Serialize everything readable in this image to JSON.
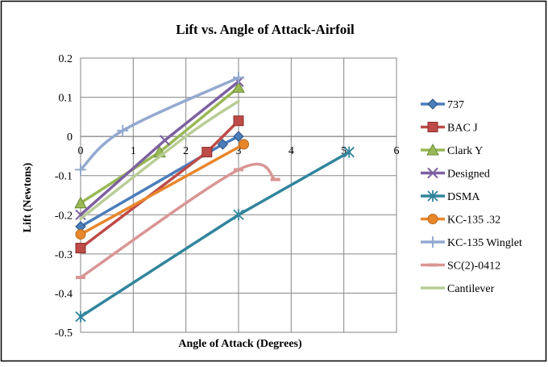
{
  "chart_data": {
    "type": "line",
    "title": "Lift vs. Angle of Attack-Airfoil",
    "xlabel": "Angle of Attack (Degrees)",
    "ylabel": "Lift (Newtons)",
    "xlim": [
      0,
      6
    ],
    "ylim": [
      -0.5,
      0.2
    ],
    "xticks": [
      "0",
      "1",
      "2",
      "3",
      "4",
      "5",
      "6"
    ],
    "yticks": [
      "0.2",
      "0.1",
      "0",
      "-0.1",
      "-0.2",
      "-0.3",
      "-0.4",
      "-0.5"
    ],
    "grid": true,
    "legend_position": "right",
    "series": [
      {
        "name": "737",
        "color": "#4a7ebb",
        "marker": "diamond",
        "smooth": false,
        "x": [
          0,
          2.7,
          3.0
        ],
        "y": [
          -0.23,
          -0.02,
          0.0
        ]
      },
      {
        "name": "BAC J",
        "color": "#be4b48",
        "marker": "square",
        "smooth": false,
        "x": [
          0,
          2.4,
          3.0
        ],
        "y": [
          -0.285,
          -0.04,
          0.04
        ]
      },
      {
        "name": "Clark Y",
        "color": "#98b954",
        "marker": "triangle",
        "smooth": false,
        "x": [
          0,
          1.5,
          3.0
        ],
        "y": [
          -0.17,
          -0.04,
          0.125
        ]
      },
      {
        "name": "Designed",
        "color": "#7d60a0",
        "marker": "x",
        "smooth": false,
        "x": [
          0,
          1.6,
          3.0
        ],
        "y": [
          -0.2,
          -0.01,
          0.14
        ]
      },
      {
        "name": "DSMA",
        "color": "#31859c",
        "marker": "star",
        "smooth": false,
        "x": [
          0,
          3.0,
          5.1
        ],
        "y": [
          -0.46,
          -0.2,
          -0.04
        ]
      },
      {
        "name": "KC-135 .32",
        "color": "#e8862b",
        "marker": "circle",
        "smooth": false,
        "x": [
          0,
          3.1
        ],
        "y": [
          -0.25,
          -0.02
        ]
      },
      {
        "name": "KC-135 Winglet",
        "color": "#93a9cf",
        "marker": "plus",
        "smooth": true,
        "x": [
          0,
          0.8,
          3.0
        ],
        "y": [
          -0.085,
          0.015,
          0.15
        ]
      },
      {
        "name": "SC(2)-0412",
        "color": "#d99694",
        "marker": "dash",
        "smooth": true,
        "x": [
          0,
          3.0,
          3.7
        ],
        "y": [
          -0.36,
          -0.085,
          -0.11
        ]
      },
      {
        "name": "Cantilever",
        "color": "#b9cd96",
        "marker": "none",
        "smooth": true,
        "x": [
          0,
          2.0,
          3.0
        ],
        "y": [
          -0.21,
          0.0,
          0.09
        ]
      }
    ]
  }
}
